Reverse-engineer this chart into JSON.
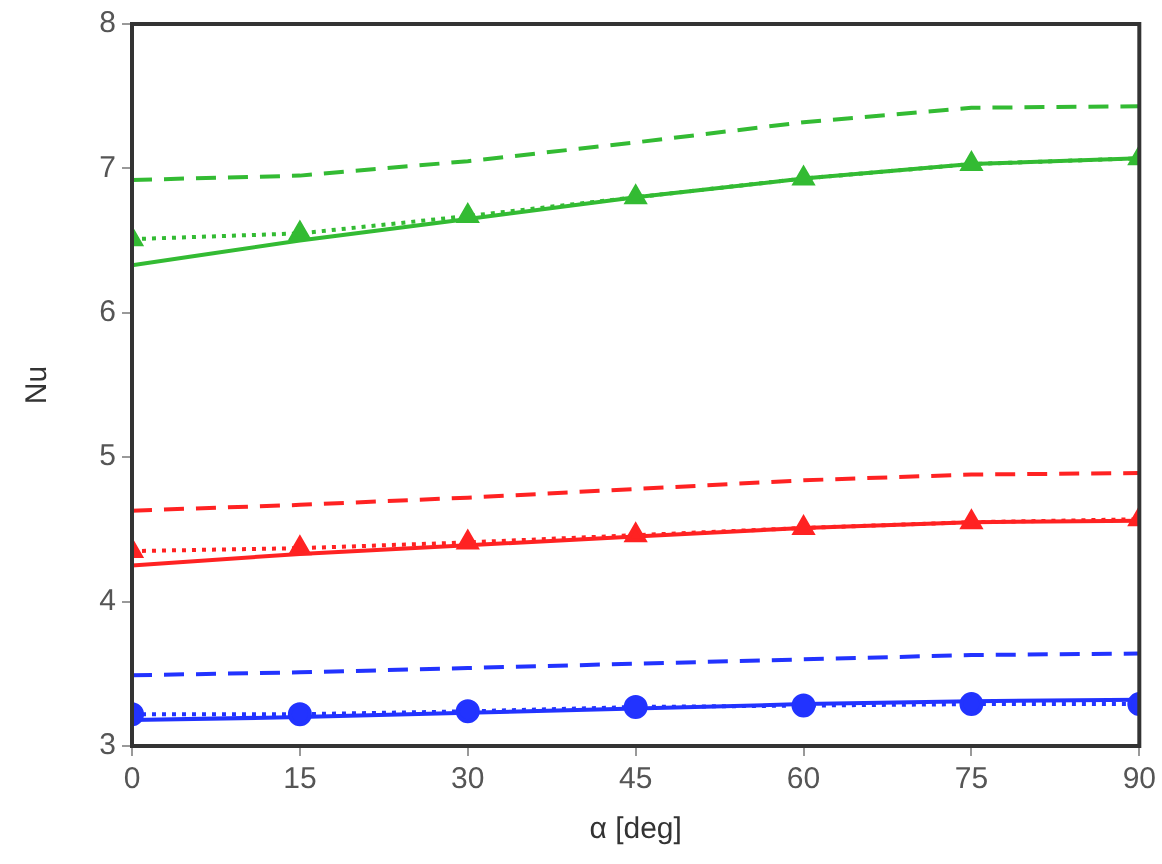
{
  "chart_data": {
    "type": "line",
    "xlabel": "α [deg]",
    "ylabel": "Nu",
    "x": [
      0,
      15,
      30,
      45,
      60,
      75,
      90
    ],
    "xlim": [
      0,
      90
    ],
    "xticks": [
      0,
      15,
      30,
      45,
      60,
      75,
      90
    ],
    "ylim": [
      3,
      8
    ],
    "yticks": [
      3,
      4,
      5,
      6,
      7,
      8
    ],
    "grid": false,
    "legend": false,
    "series": [
      {
        "color": "#33bb33",
        "line_style": "dashed",
        "marker": "none",
        "values": [
          6.92,
          6.95,
          7.05,
          7.18,
          7.32,
          7.42,
          7.43
        ]
      },
      {
        "color": "#33bb33",
        "line_style": "dotted",
        "marker": "triangle",
        "values": [
          6.51,
          6.55,
          6.67,
          6.8,
          6.93,
          7.03,
          7.07
        ]
      },
      {
        "color": "#33bb33",
        "line_style": "solid",
        "marker": "none",
        "values": [
          6.33,
          6.5,
          6.65,
          6.8,
          6.93,
          7.03,
          7.07
        ]
      },
      {
        "color": "#ff2222",
        "line_style": "dashed",
        "marker": "none",
        "values": [
          4.63,
          4.67,
          4.72,
          4.78,
          4.84,
          4.88,
          4.89
        ]
      },
      {
        "color": "#ff2222",
        "line_style": "dotted",
        "marker": "triangle",
        "values": [
          4.35,
          4.37,
          4.41,
          4.46,
          4.51,
          4.55,
          4.57
        ]
      },
      {
        "color": "#ff2222",
        "line_style": "solid",
        "marker": "none",
        "values": [
          4.25,
          4.33,
          4.39,
          4.45,
          4.51,
          4.55,
          4.56
        ]
      },
      {
        "color": "#2233ff",
        "line_style": "dashed",
        "marker": "none",
        "values": [
          3.49,
          3.51,
          3.54,
          3.57,
          3.6,
          3.63,
          3.64
        ]
      },
      {
        "color": "#2233ff",
        "line_style": "dotted",
        "marker": "circle",
        "values": [
          3.22,
          3.22,
          3.24,
          3.27,
          3.28,
          3.29,
          3.29
        ]
      },
      {
        "color": "#2233ff",
        "line_style": "solid",
        "marker": "none",
        "values": [
          3.18,
          3.2,
          3.23,
          3.26,
          3.29,
          3.31,
          3.32
        ]
      }
    ]
  }
}
